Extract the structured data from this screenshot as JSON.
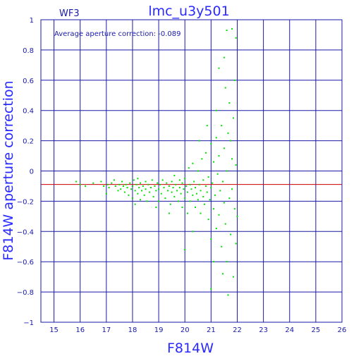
{
  "chart_data": {
    "type": "scatter",
    "title": "lmc_u3y501",
    "panel_label": "WF3",
    "annotation": "Average aperture correction: -0.089",
    "xlabel": "F814W",
    "ylabel": "F814W aperture correction",
    "xlim": [
      14.5,
      26
    ],
    "ylim": [
      -1,
      1
    ],
    "x_ticks": [
      15,
      16,
      17,
      18,
      19,
      20,
      21,
      22,
      23,
      24,
      25,
      26
    ],
    "y_ticks": [
      -1,
      -0.8,
      -0.6,
      -0.4,
      -0.2,
      0,
      0.2,
      0.4,
      0.6,
      0.8,
      1
    ],
    "y_tick_labels": [
      "−1",
      "−0.8",
      "−0.6",
      "−0.4",
      "−0.2",
      "0",
      "0.2",
      "0.4",
      "0.6",
      "0.8",
      "1"
    ],
    "grid": true,
    "average_line": {
      "y": -0.089,
      "color": "#cc0000"
    },
    "colors": {
      "axes": "#1a1aa8",
      "grid": "#1a1aa8",
      "points": "#00e000",
      "title": "#2a2aff"
    },
    "series": [
      {
        "type": "scatter",
        "points": [
          [
            15.85,
            -0.07
          ],
          [
            16.0,
            -0.09
          ],
          [
            16.2,
            -0.1
          ],
          [
            16.5,
            -0.08
          ],
          [
            16.8,
            -0.07
          ],
          [
            16.9,
            -0.1
          ],
          [
            17.0,
            -0.15
          ],
          [
            17.05,
            -0.09
          ],
          [
            17.1,
            -0.11
          ],
          [
            17.2,
            -0.08
          ],
          [
            17.3,
            -0.06
          ],
          [
            17.35,
            -0.1
          ],
          [
            17.45,
            -0.13
          ],
          [
            17.5,
            -0.09
          ],
          [
            17.55,
            -0.12
          ],
          [
            17.6,
            -0.07
          ],
          [
            17.65,
            -0.1
          ],
          [
            17.7,
            -0.14
          ],
          [
            17.75,
            -0.09
          ],
          [
            17.8,
            -0.11
          ],
          [
            17.85,
            -0.16
          ],
          [
            17.9,
            -0.08
          ],
          [
            17.95,
            -0.12
          ],
          [
            18.0,
            -0.1
          ],
          [
            18.0,
            -0.18
          ],
          [
            18.05,
            -0.06
          ],
          [
            18.1,
            -0.13
          ],
          [
            18.1,
            -0.22
          ],
          [
            18.15,
            -0.09
          ],
          [
            18.2,
            -0.15
          ],
          [
            18.2,
            -0.05
          ],
          [
            18.25,
            -0.11
          ],
          [
            18.3,
            -0.19
          ],
          [
            18.3,
            -0.08
          ],
          [
            18.35,
            -0.13
          ],
          [
            18.4,
            -0.1
          ],
          [
            18.45,
            -0.16
          ],
          [
            18.5,
            -0.07
          ],
          [
            18.5,
            -0.12
          ],
          [
            18.55,
            -0.2
          ],
          [
            18.6,
            -0.09
          ],
          [
            18.65,
            -0.14
          ],
          [
            18.7,
            -0.11
          ],
          [
            18.75,
            -0.06
          ],
          [
            18.8,
            -0.17
          ],
          [
            18.85,
            -0.1
          ],
          [
            18.9,
            -0.13
          ],
          [
            18.95,
            -0.08
          ],
          [
            19.0,
            -0.12
          ],
          [
            19.0,
            -0.2
          ],
          [
            19.05,
            -0.09
          ],
          [
            19.1,
            -0.15
          ],
          [
            19.15,
            -0.06
          ],
          [
            19.2,
            -0.11
          ],
          [
            19.25,
            -0.18
          ],
          [
            19.3,
            -0.08
          ],
          [
            19.35,
            -0.13
          ],
          [
            19.4,
            -0.1
          ],
          [
            19.45,
            -0.22
          ],
          [
            19.5,
            -0.07
          ],
          [
            19.5,
            -0.14
          ],
          [
            19.55,
            -0.11
          ],
          [
            19.6,
            -0.03
          ],
          [
            19.6,
            -0.17
          ],
          [
            19.65,
            -0.09
          ],
          [
            19.7,
            -0.13
          ],
          [
            19.75,
            -0.2
          ],
          [
            19.8,
            -0.06
          ],
          [
            19.8,
            -0.11
          ],
          [
            19.85,
            -0.15
          ],
          [
            19.9,
            -0.08
          ],
          [
            19.9,
            -0.24
          ],
          [
            19.95,
            -0.12
          ],
          [
            20.0,
            -0.18
          ],
          [
            20.0,
            -0.05
          ],
          [
            20.05,
            -0.1
          ],
          [
            20.1,
            -0.14
          ],
          [
            20.1,
            -0.28
          ],
          [
            20.15,
            0.02
          ],
          [
            20.2,
            -0.09
          ],
          [
            20.2,
            -0.2
          ],
          [
            20.25,
            -0.12
          ],
          [
            20.3,
            -0.16
          ],
          [
            20.3,
            0.05
          ],
          [
            20.35,
            -0.07
          ],
          [
            20.4,
            -0.24
          ],
          [
            20.4,
            -0.11
          ],
          [
            20.45,
            -0.15
          ],
          [
            20.5,
            0.0
          ],
          [
            20.5,
            -0.19
          ],
          [
            20.55,
            -0.09
          ],
          [
            20.6,
            -0.28
          ],
          [
            20.6,
            -0.13
          ],
          [
            20.65,
            0.08
          ],
          [
            20.7,
            -0.06
          ],
          [
            20.7,
            -0.17
          ],
          [
            20.75,
            -0.22
          ],
          [
            20.8,
            -0.1
          ],
          [
            20.8,
            0.12
          ],
          [
            20.85,
            -0.14
          ],
          [
            20.9,
            -0.32
          ],
          [
            20.9,
            -0.04
          ],
          [
            20.95,
            -0.19
          ],
          [
            21.0,
            -0.11
          ],
          [
            21.0,
            0.18
          ],
          [
            21.0,
            -0.45
          ],
          [
            21.05,
            -0.08
          ],
          [
            21.1,
            -0.25
          ],
          [
            21.1,
            0.06
          ],
          [
            21.15,
            -0.16
          ],
          [
            21.2,
            -0.38
          ],
          [
            21.2,
            0.22
          ],
          [
            21.25,
            -0.02
          ],
          [
            21.3,
            -0.29
          ],
          [
            21.3,
            0.1
          ],
          [
            21.35,
            -0.13
          ],
          [
            21.4,
            -0.5
          ],
          [
            21.4,
            0.3
          ],
          [
            21.45,
            -0.07
          ],
          [
            21.5,
            -0.21
          ],
          [
            21.5,
            0.15
          ],
          [
            21.55,
            -0.35
          ],
          [
            21.6,
            0.0
          ],
          [
            21.6,
            -0.6
          ],
          [
            21.65,
            0.25
          ],
          [
            21.7,
            -0.18
          ],
          [
            21.7,
            0.45
          ],
          [
            21.75,
            -0.42
          ],
          [
            21.8,
            0.08
          ],
          [
            21.8,
            -0.12
          ],
          [
            21.85,
            -0.7
          ],
          [
            21.85,
            0.35
          ],
          [
            21.9,
            -0.25
          ],
          [
            21.9,
            0.6
          ],
          [
            21.95,
            0.04
          ],
          [
            21.95,
            -0.48
          ],
          [
            21.5,
            0.75
          ],
          [
            21.6,
            0.93
          ],
          [
            21.8,
            0.94
          ],
          [
            21.95,
            0.88
          ],
          [
            21.3,
            0.68
          ],
          [
            21.65,
            -0.82
          ],
          [
            21.0,
            -0.78
          ],
          [
            21.2,
            0.4
          ],
          [
            21.55,
            0.55
          ],
          [
            21.1,
            -0.6
          ],
          [
            20.85,
            0.3
          ],
          [
            21.45,
            -0.68
          ],
          [
            22.0,
            -0.3
          ],
          [
            21.75,
            0.2
          ],
          [
            20.0,
            -0.52
          ],
          [
            20.3,
            -0.4
          ],
          [
            20.55,
            0.2
          ],
          [
            19.4,
            -0.28
          ],
          [
            18.9,
            -0.24
          ]
        ]
      }
    ]
  }
}
